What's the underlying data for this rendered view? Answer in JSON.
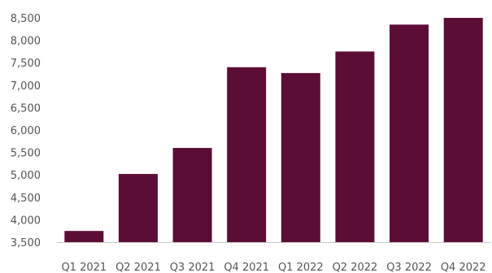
{
  "chart_data": {
    "type": "bar",
    "title": "",
    "xlabel": "",
    "ylabel": "",
    "categories": [
      "Q1 2021",
      "Q2 2021",
      "Q3 2021",
      "Q4 2021",
      "Q1 2022",
      "Q2 2022",
      "Q3 2022",
      "Q4 2022"
    ],
    "values": [
      3750,
      5020,
      5600,
      7400,
      7270,
      7750,
      8350,
      8500
    ],
    "ylim": [
      3500,
      8500
    ],
    "y_ticks": [
      3500,
      4000,
      4500,
      5000,
      5500,
      6000,
      6500,
      7000,
      7500,
      8000,
      8500
    ],
    "y_tick_labels": [
      "3,500",
      "4,000",
      "4,500",
      "5,000",
      "5,500",
      "6,000",
      "6,500",
      "7,000",
      "7,500",
      "8,000",
      "8,500"
    ],
    "grid": false,
    "legend": "none",
    "colors": {
      "bar": "#5c0d35",
      "axis": "#c8c8c8",
      "text": "#555555"
    }
  }
}
